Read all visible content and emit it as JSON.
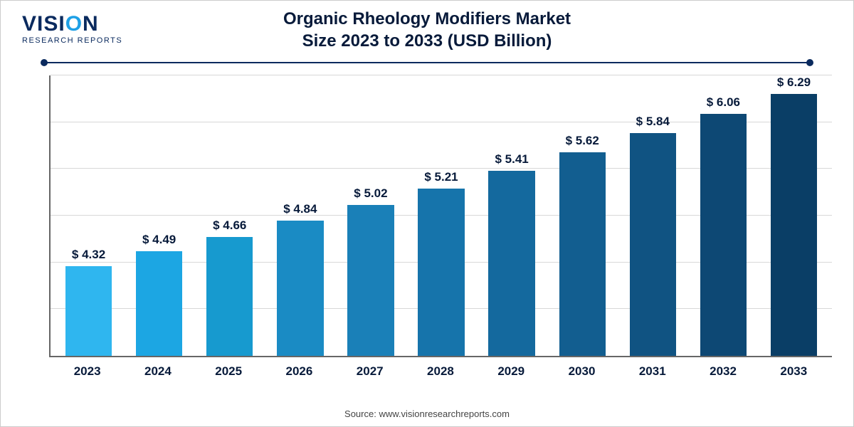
{
  "logo": {
    "main_pre": "VISI",
    "main_accent": "O",
    "main_post": "N",
    "sub": "RESEARCH REPORTS"
  },
  "title": {
    "line1": "Organic Rheology Modifiers Market",
    "line2": "Size 2023 to 2033 (USD Billion)",
    "fontsize": 24,
    "color": "#071a3a"
  },
  "source": "Source: www.visionresearchreports.com",
  "chart": {
    "type": "bar",
    "categories": [
      "2023",
      "2024",
      "2025",
      "2026",
      "2027",
      "2028",
      "2029",
      "2030",
      "2031",
      "2032",
      "2033"
    ],
    "values": [
      4.32,
      4.49,
      4.66,
      4.84,
      5.02,
      5.21,
      5.41,
      5.62,
      5.84,
      6.06,
      6.29
    ],
    "value_labels": [
      "$ 4.32",
      "$ 4.49",
      "$ 4.66",
      "$ 4.84",
      "$ 5.02",
      "$ 5.21",
      "$ 5.41",
      "$ 5.62",
      "$ 5.84",
      "$ 6.06",
      "$ 6.29"
    ],
    "bar_colors": [
      "#2fb6ef",
      "#1ca6e3",
      "#179acf",
      "#1a8bc4",
      "#1a80b8",
      "#1674ab",
      "#14699e",
      "#125e90",
      "#105382",
      "#0d4874",
      "#0a3e66"
    ],
    "ylim": [
      3.3,
      6.5
    ],
    "grid_count": 6,
    "grid_color": "#d8d8d8",
    "axis_color": "#666666",
    "background_color": "#ffffff",
    "label_fontsize": 17,
    "label_fontweight": "700",
    "label_color": "#071a3a",
    "xlabel_fontsize": 17,
    "xlabel_color": "#071a3a",
    "bar_width_pct": 66
  }
}
